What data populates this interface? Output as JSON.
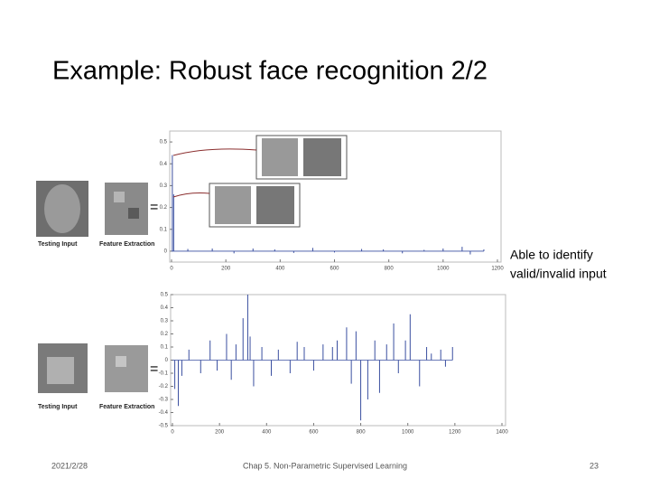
{
  "title": "Example: Robust face recognition 2/2",
  "figure_labels": {
    "top": [
      "Testing Input",
      "Feature Extraction"
    ],
    "bottom": [
      "Testing Input",
      "Feature Extraction"
    ]
  },
  "annotation": [
    "Able to identify",
    "valid/invalid input"
  ],
  "footer": {
    "date": "2021/2/28",
    "course": "Chap 5. Non-Parametric Supervised Learning",
    "page": "23"
  },
  "chart_data": [
    {
      "type": "stem",
      "color": "#3a4fa0",
      "x": [
        3,
        8,
        60,
        150,
        230,
        300,
        380,
        450,
        520,
        600,
        700,
        780,
        850,
        930,
        1000,
        1070,
        1100,
        1150
      ],
      "values": [
        0.44,
        0.26,
        0.01,
        0.012,
        -0.01,
        0.012,
        0.008,
        -0.008,
        0.015,
        -0.006,
        0.01,
        0.008,
        -0.01,
        0.006,
        0.012,
        0.02,
        -0.015,
        0.008
      ],
      "xlim": [
        0,
        1200
      ],
      "xticks": [
        0,
        200,
        400,
        600,
        800,
        1000,
        1200
      ],
      "ylim": [
        -0.05,
        0.55
      ],
      "yticks": [
        0,
        0.1,
        0.2,
        0.3,
        0.4,
        0.5
      ]
    },
    {
      "type": "stem",
      "color": "#3a4fa0",
      "x": [
        10,
        25,
        40,
        70,
        120,
        160,
        190,
        230,
        250,
        270,
        300,
        320,
        330,
        345,
        380,
        420,
        450,
        500,
        530,
        560,
        600,
        640,
        680,
        700,
        740,
        760,
        780,
        800,
        830,
        860,
        880,
        910,
        940,
        960,
        990,
        1010,
        1050,
        1080,
        1100,
        1140,
        1160,
        1190
      ],
      "values": [
        -0.22,
        -0.35,
        -0.12,
        0.08,
        -0.1,
        0.15,
        -0.08,
        0.2,
        -0.15,
        0.12,
        0.32,
        0.5,
        0.18,
        -0.2,
        0.1,
        -0.12,
        0.08,
        -0.1,
        0.14,
        0.1,
        -0.08,
        0.12,
        0.1,
        0.15,
        0.25,
        -0.18,
        0.22,
        -0.46,
        -0.3,
        0.15,
        -0.25,
        0.12,
        0.28,
        -0.1,
        0.15,
        0.35,
        -0.2,
        0.1,
        0.05,
        0.08,
        -0.05,
        0.1
      ],
      "xlim": [
        0,
        1400
      ],
      "xticks": [
        0,
        200,
        400,
        600,
        800,
        1000,
        1200,
        1400
      ],
      "ylim": [
        -0.5,
        0.5
      ],
      "yticks": [
        -0.5,
        -0.4,
        -0.3,
        -0.2,
        -0.1,
        0,
        0.1,
        0.2,
        0.3,
        0.4,
        0.5
      ]
    }
  ]
}
